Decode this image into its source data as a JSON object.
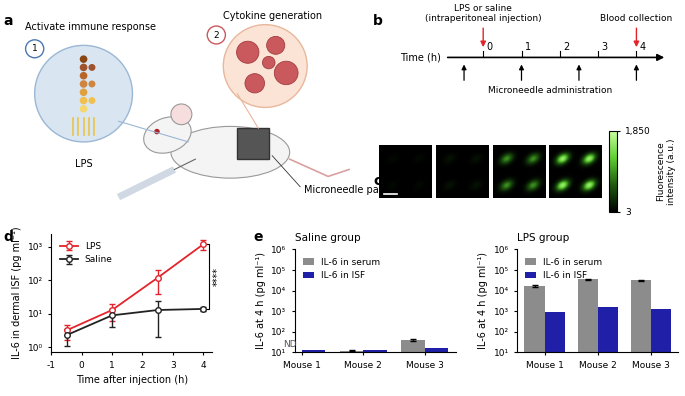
{
  "panel_labels": [
    "a",
    "b",
    "c",
    "d",
    "e"
  ],
  "schematic": {
    "bubble1": "Activate immune response",
    "step1": "1",
    "bubble2": "Cytokine generation",
    "step2": "2",
    "lps": "LPS",
    "patch": "Microneedle patch"
  },
  "timeline": {
    "time_label": "Time (h)",
    "ticks": [
      0,
      1,
      2,
      3,
      4
    ],
    "xlim": [
      -1,
      4.8
    ],
    "injection": {
      "time": 0,
      "label": "LPS or saline\n(intraperitoneal injection)"
    },
    "collection": {
      "time": 4,
      "label": "Blood collection"
    },
    "administration": {
      "times": [
        -0.5,
        1,
        2.5,
        4
      ],
      "label": "Microneedle administration"
    }
  },
  "images": {
    "peak_intensities": [
      60,
      120,
      900,
      1600
    ],
    "colorbar": {
      "range": [
        3,
        1850
      ],
      "ticks": [
        {
          "value": 1850,
          "label": "1,850"
        },
        3
      ],
      "label": "Fluorescence\nintensity (a.u.)"
    }
  },
  "chart_data": [
    {
      "type": "line",
      "x_label": "Time after injection (h)",
      "y_label": "IL-6 in dermal ISF (pg ml⁻¹)",
      "log": "y",
      "x": [
        -0.5,
        1,
        2.5,
        4
      ],
      "xlim": [
        -1,
        4.3
      ],
      "xticks": [
        -1,
        0,
        1,
        2,
        3,
        4
      ],
      "ylim": [
        0.7,
        2500
      ],
      "yticks": [
        {
          "value": 1,
          "label": "10⁰"
        },
        {
          "value": 10,
          "label": "10¹"
        },
        {
          "value": 100,
          "label": "10²"
        },
        {
          "value": 1000,
          "label": "10³"
        }
      ],
      "legend": "upper left",
      "series": [
        {
          "name": "LPS",
          "color": "#e3242b",
          "marker": "circle",
          "values": [
            3.2,
            13,
            120,
            1200
          ],
          "errors": [
            1.5,
            7,
            80,
            400
          ]
        },
        {
          "name": "Saline",
          "color": "#222222",
          "marker": "circle",
          "values": [
            2.3,
            9,
            13,
            14
          ],
          "errors": [
            1.2,
            5,
            11,
            2
          ]
        }
      ],
      "annotations": [
        {
          "text": "****"
        }
      ]
    },
    {
      "type": "bar",
      "title": "Saline group",
      "y_label": "IL-6 at 4 h (pg ml⁻¹)",
      "log": "y",
      "categories": [
        "Mouse 1",
        "Mouse 2",
        "Mouse 3"
      ],
      "ylim": [
        10,
        1000000
      ],
      "yticks": [
        {
          "value": 10,
          "label": "10¹"
        },
        {
          "value": 100,
          "label": "10²"
        },
        {
          "value": 1000,
          "label": "10³"
        },
        {
          "value": 10000,
          "label": "10⁴"
        },
        {
          "value": 100000,
          "label": "10⁵"
        },
        {
          "value": 1000000,
          "label": "10⁶"
        }
      ],
      "legend": "upper left",
      "series": [
        {
          "name": "IL-6 in serum",
          "color": "#8c8c8c",
          "values": [
            null,
            12,
            40
          ],
          "errors": [
            null,
            0.8,
            4
          ]
        },
        {
          "name": "IL-6 in ISF",
          "color": "#1f1fa8",
          "values": [
            13,
            13,
            16
          ]
        }
      ],
      "annotations": [
        {
          "text": "ND",
          "category": "Mouse 1",
          "series": "IL-6 in serum"
        }
      ]
    },
    {
      "type": "bar",
      "title": "LPS group",
      "y_label": "IL-6 at 4 h (pg ml⁻¹)",
      "log": "y",
      "categories": [
        "Mouse 1",
        "Mouse 2",
        "Mouse 3"
      ],
      "ylim": [
        10,
        1000000
      ],
      "yticks": [
        {
          "value": 10,
          "label": "10¹"
        },
        {
          "value": 100,
          "label": "10²"
        },
        {
          "value": 1000,
          "label": "10³"
        },
        {
          "value": 10000,
          "label": "10⁴"
        },
        {
          "value": 100000,
          "label": "10⁵"
        },
        {
          "value": 1000000,
          "label": "10⁶"
        }
      ],
      "legend": "upper left",
      "series": [
        {
          "name": "IL-6 in serum",
          "color": "#8c8c8c",
          "values": [
            17000,
            35000,
            32000
          ],
          "errors": [
            1500,
            2000,
            2000
          ]
        },
        {
          "name": "IL-6 in ISF",
          "color": "#1f1fa8",
          "values": [
            900,
            1600,
            1300
          ]
        }
      ]
    }
  ]
}
